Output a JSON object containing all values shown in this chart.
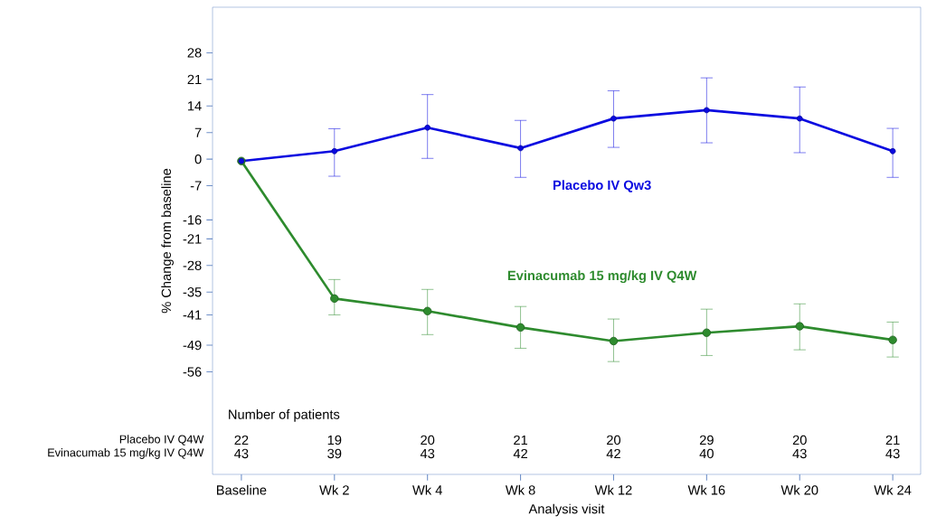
{
  "chart_data": {
    "type": "line",
    "categories": [
      "Baseline",
      "Wk 2",
      "Wk 4",
      "Wk 8",
      "Wk 12",
      "Wk 16",
      "Wk 20",
      "Wk 24"
    ],
    "series": [
      {
        "name": "Placebo IV Qw3",
        "color": "#0a0ae0",
        "values": [
          -0.5,
          2.1,
          8.3,
          2.9,
          10.7,
          12.9,
          10.7,
          2.1
        ],
        "errors": [
          null,
          [
            -4.5,
            8
          ],
          [
            0.2,
            17
          ],
          [
            -4.8,
            10.2
          ],
          [
            3.1,
            18
          ],
          [
            4.3,
            21.4
          ],
          [
            1.7,
            19
          ],
          [
            -4.8,
            8.1
          ]
        ]
      },
      {
        "name": "Evinacumab 15 mg/kg IV Q4W",
        "color": "#2e8b2e",
        "values": [
          -0.5,
          -36.7,
          -40,
          -44.3,
          -47.9,
          -45.7,
          -44,
          -47.6
        ],
        "errors": [
          null,
          [
            -41,
            -31.7
          ],
          [
            -46.2,
            -34.3
          ],
          [
            -49.8,
            -38.8
          ],
          [
            -53.3,
            -42.1
          ],
          [
            -51.7,
            -39.5
          ],
          [
            -50.2,
            -38.1
          ],
          [
            -52.1,
            -42.9
          ]
        ]
      }
    ],
    "xlabel": "Analysis visit",
    "ylabel": "% Change from baseline",
    "ylim": [
      -83,
      40
    ],
    "yticks": [
      28,
      21,
      14,
      7,
      0,
      -7,
      -16,
      -21,
      -28,
      -35,
      -41,
      -49,
      -56
    ],
    "marker": "circle",
    "line_style": "solid",
    "grid": false,
    "annotations": [
      "Number of patients",
      "Placebo IV Q4W",
      "Evinacumab 15 mg/kg IV Q4W",
      "22",
      "19",
      "20",
      "21",
      "20",
      "29",
      "20",
      "21",
      "43",
      "39",
      "43",
      "42",
      "42",
      "40",
      "43",
      "43"
    ]
  }
}
